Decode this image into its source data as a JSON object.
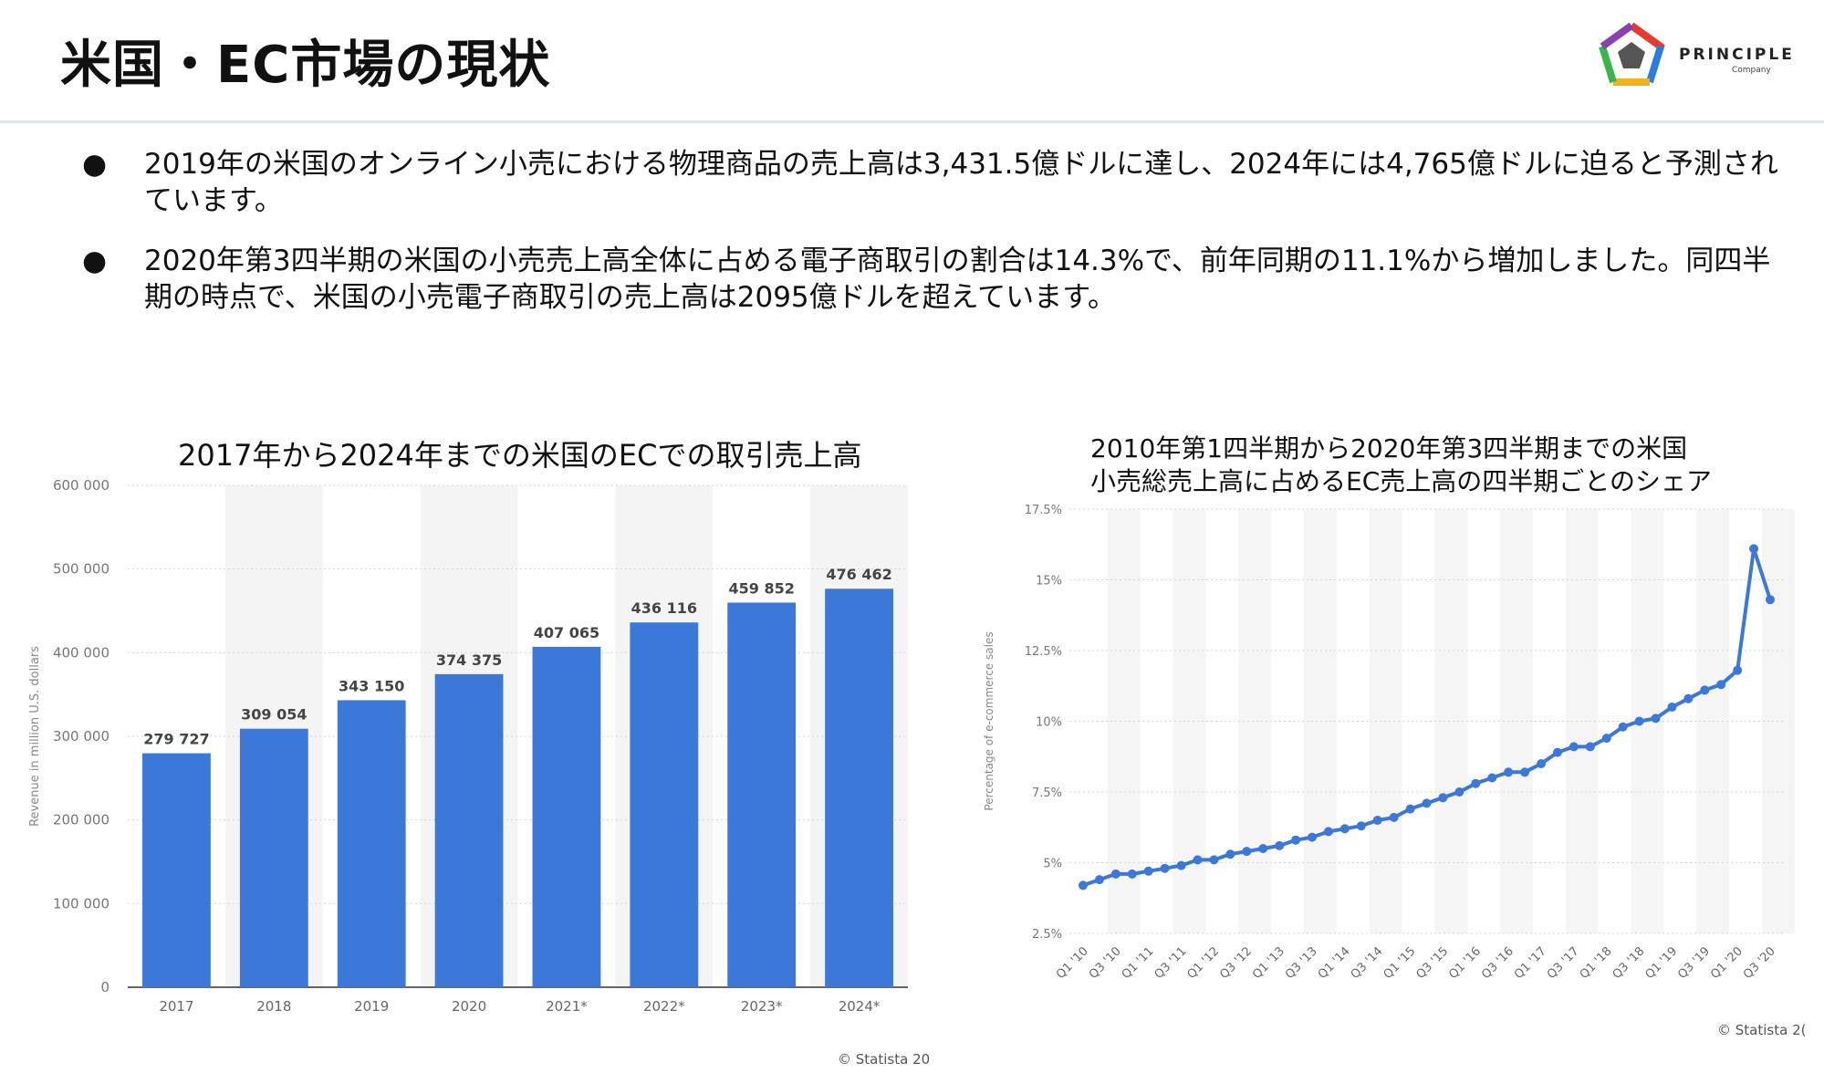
{
  "header": {
    "title": "米国・EC市場の現状",
    "logo_name": "PRINCIPLE",
    "logo_sub": "Company"
  },
  "bullets": [
    "2019年の米国のオンライン小売における物理商品の売上高は3,431.5億ドルに達し、2024年には4,765億ドルに迫ると予測されています。",
    "2020年第3四半期の米国の小売売上高全体に占める電子商取引の割合は14.3%で、前年同期の11.1%から増加しました。同四半期の時点で、米国の小売電子商取引の売上高は2095億ドルを超えています。"
  ],
  "bullet_marker": "●",
  "chart_data": [
    {
      "type": "bar",
      "title": "2017年から2024年までの米国のECでの取引売上高",
      "ylabel": "Revenue in million U.S. dollars",
      "categories": [
        "2017",
        "2018",
        "2019",
        "2020",
        "2021*",
        "2022*",
        "2023*",
        "2024*"
      ],
      "values": [
        279727,
        309054,
        343150,
        374375,
        407065,
        436116,
        459852,
        476462
      ],
      "value_labels": [
        "279 727",
        "309 054",
        "343 150",
        "374 375",
        "407 065",
        "436 116",
        "459 852",
        "476 462"
      ],
      "ylim": [
        0,
        600000
      ],
      "yticks": [
        0,
        100000,
        200000,
        300000,
        400000,
        500000,
        600000
      ],
      "ytick_labels": [
        "0",
        "100 000",
        "200 000",
        "300 000",
        "400 000",
        "500 000",
        "600 000"
      ],
      "bar_color": "#3b78d8",
      "source": "© Statista 20"
    },
    {
      "type": "line",
      "title": [
        "2010年第1四半期から2020年第3四半期までの米国",
        "小売総売上高に占めるEC売上高の四半期ごとのシェア"
      ],
      "ylabel": "Percentage of e-commerce sales",
      "ylim": [
        2.5,
        17.5
      ],
      "yticks": [
        2.5,
        5,
        7.5,
        10,
        12.5,
        15,
        17.5
      ],
      "ytick_labels": [
        "2.5%",
        "5%",
        "7.5%",
        "10%",
        "12.5%",
        "15%",
        "17.5%"
      ],
      "xtick_labels": [
        "Q1 '10",
        "Q3 '10",
        "Q1 '11",
        "Q3 '11",
        "Q1 '12",
        "Q3 '12",
        "Q1 '13",
        "Q3 '13",
        "Q1 '14",
        "Q3 '14",
        "Q1 '15",
        "Q3 '15",
        "Q1 '16",
        "Q3 '16",
        "Q1 '17",
        "Q3 '17",
        "Q1 '18",
        "Q3 '18",
        "Q1 '19",
        "Q3 '19",
        "Q1 '20",
        "Q3 '20"
      ],
      "values": [
        4.2,
        4.4,
        4.6,
        4.6,
        4.7,
        4.8,
        4.9,
        5.1,
        5.1,
        5.3,
        5.4,
        5.5,
        5.6,
        5.8,
        5.9,
        6.1,
        6.2,
        6.3,
        6.5,
        6.6,
        6.9,
        7.1,
        7.3,
        7.5,
        7.8,
        8.0,
        8.2,
        8.2,
        8.5,
        8.9,
        9.1,
        9.1,
        9.4,
        9.8,
        10.0,
        10.1,
        10.5,
        10.8,
        11.1,
        11.3,
        11.8,
        16.1,
        14.3
      ],
      "line_color": "#3b78d8",
      "source": "© Statista 2("
    }
  ]
}
